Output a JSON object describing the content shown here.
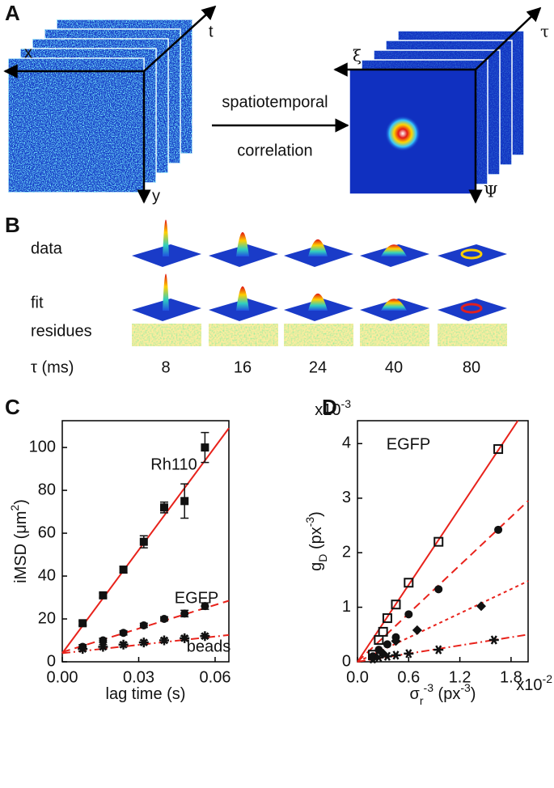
{
  "panel_A": {
    "label": "A",
    "raw_axes": [
      "x",
      "t",
      "y"
    ],
    "arrow_text": [
      "spatiotemporal",
      "correlation"
    ],
    "corr_axes": [
      "ξ",
      "τ",
      "Ψ"
    ]
  },
  "panel_B": {
    "label": "B",
    "rows": [
      "data",
      "fit",
      "residues"
    ],
    "tau_label": "τ (ms)",
    "tau_values": [
      8,
      16,
      24,
      40,
      80
    ]
  },
  "chart_data": [
    {
      "type": "scatter",
      "panel_label": "C",
      "xlabel": [
        {
          "t": "lag time (s)"
        }
      ],
      "ylabel": [
        {
          "t": "iMSD (μm"
        },
        {
          "t": "2",
          "sup": true
        },
        {
          "t": ")"
        }
      ],
      "xlim": [
        0,
        0.0654
      ],
      "ylim": [
        0,
        112.5
      ],
      "xticks": [
        {
          "value": 0,
          "label": "0.00"
        },
        0.03,
        0.06
      ],
      "yticks": [
        0,
        20,
        40,
        60,
        80,
        100
      ],
      "annotations": [
        "Rh110",
        "EGFP",
        "beads"
      ],
      "series": [
        {
          "marker": "square",
          "color": "#111111",
          "x": [
            0.008,
            0.016,
            0.024,
            0.032,
            0.04,
            0.048,
            0.056
          ],
          "values": [
            18,
            31,
            43,
            56,
            72,
            75,
            100
          ],
          "errors": [
            1,
            1,
            1.5,
            2.8,
            2.5,
            8,
            7
          ]
        },
        {
          "marker": "circle",
          "color": "#111111",
          "x": [
            0.008,
            0.016,
            0.024,
            0.032,
            0.04,
            0.048,
            0.056
          ],
          "values": [
            7,
            10,
            13.5,
            17,
            20,
            22.5,
            26
          ],
          "errors": [
            1,
            1,
            1,
            1,
            1,
            1.5,
            1.5
          ]
        },
        {
          "marker": "cross",
          "color": "#111111",
          "x": [
            0.008,
            0.016,
            0.024,
            0.032,
            0.04,
            0.048,
            0.056
          ],
          "values": [
            6,
            7,
            8,
            9,
            10,
            11,
            12
          ],
          "errors": [
            1,
            1,
            1,
            1,
            1,
            1,
            1
          ]
        }
      ],
      "fits": [
        {
          "dash": "solid",
          "color": "#e8221b",
          "x": [
            0,
            0.0654
          ],
          "values": [
            4,
            109
          ]
        },
        {
          "dash": "dashed",
          "color": "#e8221b",
          "x": [
            0,
            0.0654
          ],
          "values": [
            4.5,
            28.5
          ]
        },
        {
          "dash": "dashdot",
          "color": "#e8221b",
          "x": [
            0,
            0.0654
          ],
          "values": [
            4,
            12.5
          ]
        }
      ]
    },
    {
      "type": "scatter",
      "panel_label": "D",
      "xlabel": [
        {
          "t": "σ"
        },
        {
          "t": "r",
          "sub": true
        },
        {
          "t": "-3",
          "sup": true
        },
        {
          "t": " (px"
        },
        {
          "t": "-3",
          "sup": true
        },
        {
          "t": ")"
        }
      ],
      "ylabel": [
        {
          "t": "g"
        },
        {
          "t": "D",
          "sub": true
        },
        {
          "t": " (px"
        },
        {
          "t": "-3",
          "sup": true
        },
        {
          "t": ")"
        }
      ],
      "xmultiplier": [
        {
          "t": "x10"
        },
        {
          "t": "-2",
          "sup": true
        }
      ],
      "ymultiplier": [
        {
          "t": "x10"
        },
        {
          "t": "-3",
          "sup": true
        }
      ],
      "xlim": [
        0,
        2.0
      ],
      "ylim": [
        0,
        4.42
      ],
      "xticks": [
        {
          "value": 0,
          "label": "0.0"
        },
        0.6,
        1.2,
        1.8
      ],
      "yticks": [
        0,
        1,
        2,
        3,
        4
      ],
      "annotations": [
        "EGFP"
      ],
      "series": [
        {
          "marker": "square-open",
          "color": "#111111",
          "x": [
            0.18,
            0.25,
            0.3,
            0.35,
            0.45,
            0.6,
            0.95,
            1.65
          ],
          "values": [
            0.13,
            0.4,
            0.55,
            0.8,
            1.05,
            1.45,
            2.2,
            3.9
          ]
        },
        {
          "marker": "circle",
          "color": "#111111",
          "x": [
            0.18,
            0.25,
            0.35,
            0.45,
            0.6,
            0.95,
            1.65
          ],
          "values": [
            0.1,
            0.22,
            0.32,
            0.45,
            0.87,
            1.33,
            2.42
          ]
        },
        {
          "marker": "diamond",
          "color": "#111111",
          "x": [
            0.18,
            0.3,
            0.45,
            0.7,
            1.45
          ],
          "values": [
            0.07,
            0.15,
            0.38,
            0.58,
            1.02
          ]
        },
        {
          "marker": "star",
          "color": "#111111",
          "x": [
            0.18,
            0.25,
            0.35,
            0.45,
            0.6,
            0.95,
            1.6
          ],
          "values": [
            0.05,
            0.08,
            0.1,
            0.12,
            0.15,
            0.22,
            0.4
          ]
        }
      ],
      "fits": [
        {
          "dash": "solid",
          "color": "#e8221b",
          "x": [
            0,
            1.88
          ],
          "values": [
            0,
            4.42
          ]
        },
        {
          "dash": "dashed",
          "color": "#e8221b",
          "x": [
            0,
            2.0
          ],
          "values": [
            0,
            2.95
          ]
        },
        {
          "dash": "dotted",
          "color": "#e8221b",
          "x": [
            0,
            2.0
          ],
          "values": [
            0,
            1.48
          ]
        },
        {
          "dash": "dashdot",
          "color": "#e8221b",
          "x": [
            0,
            2.0
          ],
          "values": [
            0,
            0.5
          ]
        }
      ]
    }
  ]
}
